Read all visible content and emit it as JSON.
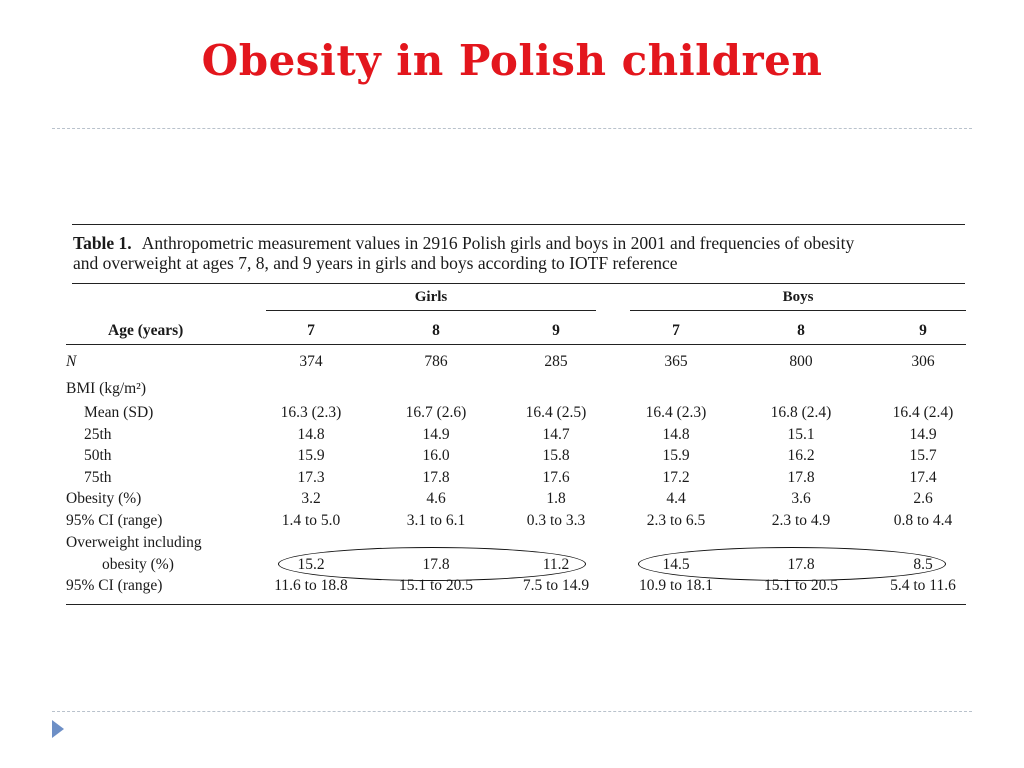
{
  "slide": {
    "title": "Obesity in Polish children"
  },
  "table": {
    "label": "Table 1.",
    "caption_line1": "Anthropometric measurement values in 2916 Polish girls and boys in 2001 and frequencies of obesity",
    "caption_line2": "and overweight at ages 7, 8, and 9 years in girls and boys according to IOTF reference",
    "groups": [
      "Girls",
      "Boys"
    ],
    "age_header": "Age (years)",
    "ages": [
      "7",
      "8",
      "9",
      "7",
      "8",
      "9"
    ],
    "rows": [
      {
        "label": "N",
        "values": [
          "374",
          "786",
          "285",
          "365",
          "800",
          "306"
        ]
      },
      {
        "label": "BMI (kg/m²)",
        "values": [
          "",
          "",
          "",
          "",
          "",
          ""
        ]
      },
      {
        "label": "Mean (SD)",
        "values": [
          "16.3 (2.3)",
          "16.7 (2.6)",
          "16.4 (2.5)",
          "16.4 (2.3)",
          "16.8 (2.4)",
          "16.4 (2.4)"
        ]
      },
      {
        "label": "25th",
        "values": [
          "14.8",
          "14.9",
          "14.7",
          "14.8",
          "15.1",
          "14.9"
        ]
      },
      {
        "label": "50th",
        "values": [
          "15.9",
          "16.0",
          "15.8",
          "15.9",
          "16.2",
          "15.7"
        ]
      },
      {
        "label": "75th",
        "values": [
          "17.3",
          "17.8",
          "17.6",
          "17.2",
          "17.8",
          "17.4"
        ]
      },
      {
        "label": "Obesity (%)",
        "values": [
          "3.2",
          "4.6",
          "1.8",
          "4.4",
          "3.6",
          "2.6"
        ]
      },
      {
        "label": "95% CI (range)",
        "values": [
          "1.4 to 5.0",
          "3.1 to 6.1",
          "0.3 to 3.3",
          "2.3 to 6.5",
          "2.3 to 4.9",
          "0.8 to 4.4"
        ]
      },
      {
        "label": "Overweight including",
        "values": [
          "",
          "",
          "",
          "",
          "",
          ""
        ]
      },
      {
        "label": "obesity (%)",
        "values": [
          "15.2",
          "17.8",
          "11.2",
          "14.5",
          "17.8",
          "8.5"
        ]
      },
      {
        "label": "95% CI (range)",
        "values": [
          "11.6 to 18.8",
          "15.1 to 20.5",
          "7.5 to 14.9",
          "10.9 to 18.1",
          "15.1 to 20.5",
          "5.4 to 11.6"
        ]
      }
    ]
  }
}
